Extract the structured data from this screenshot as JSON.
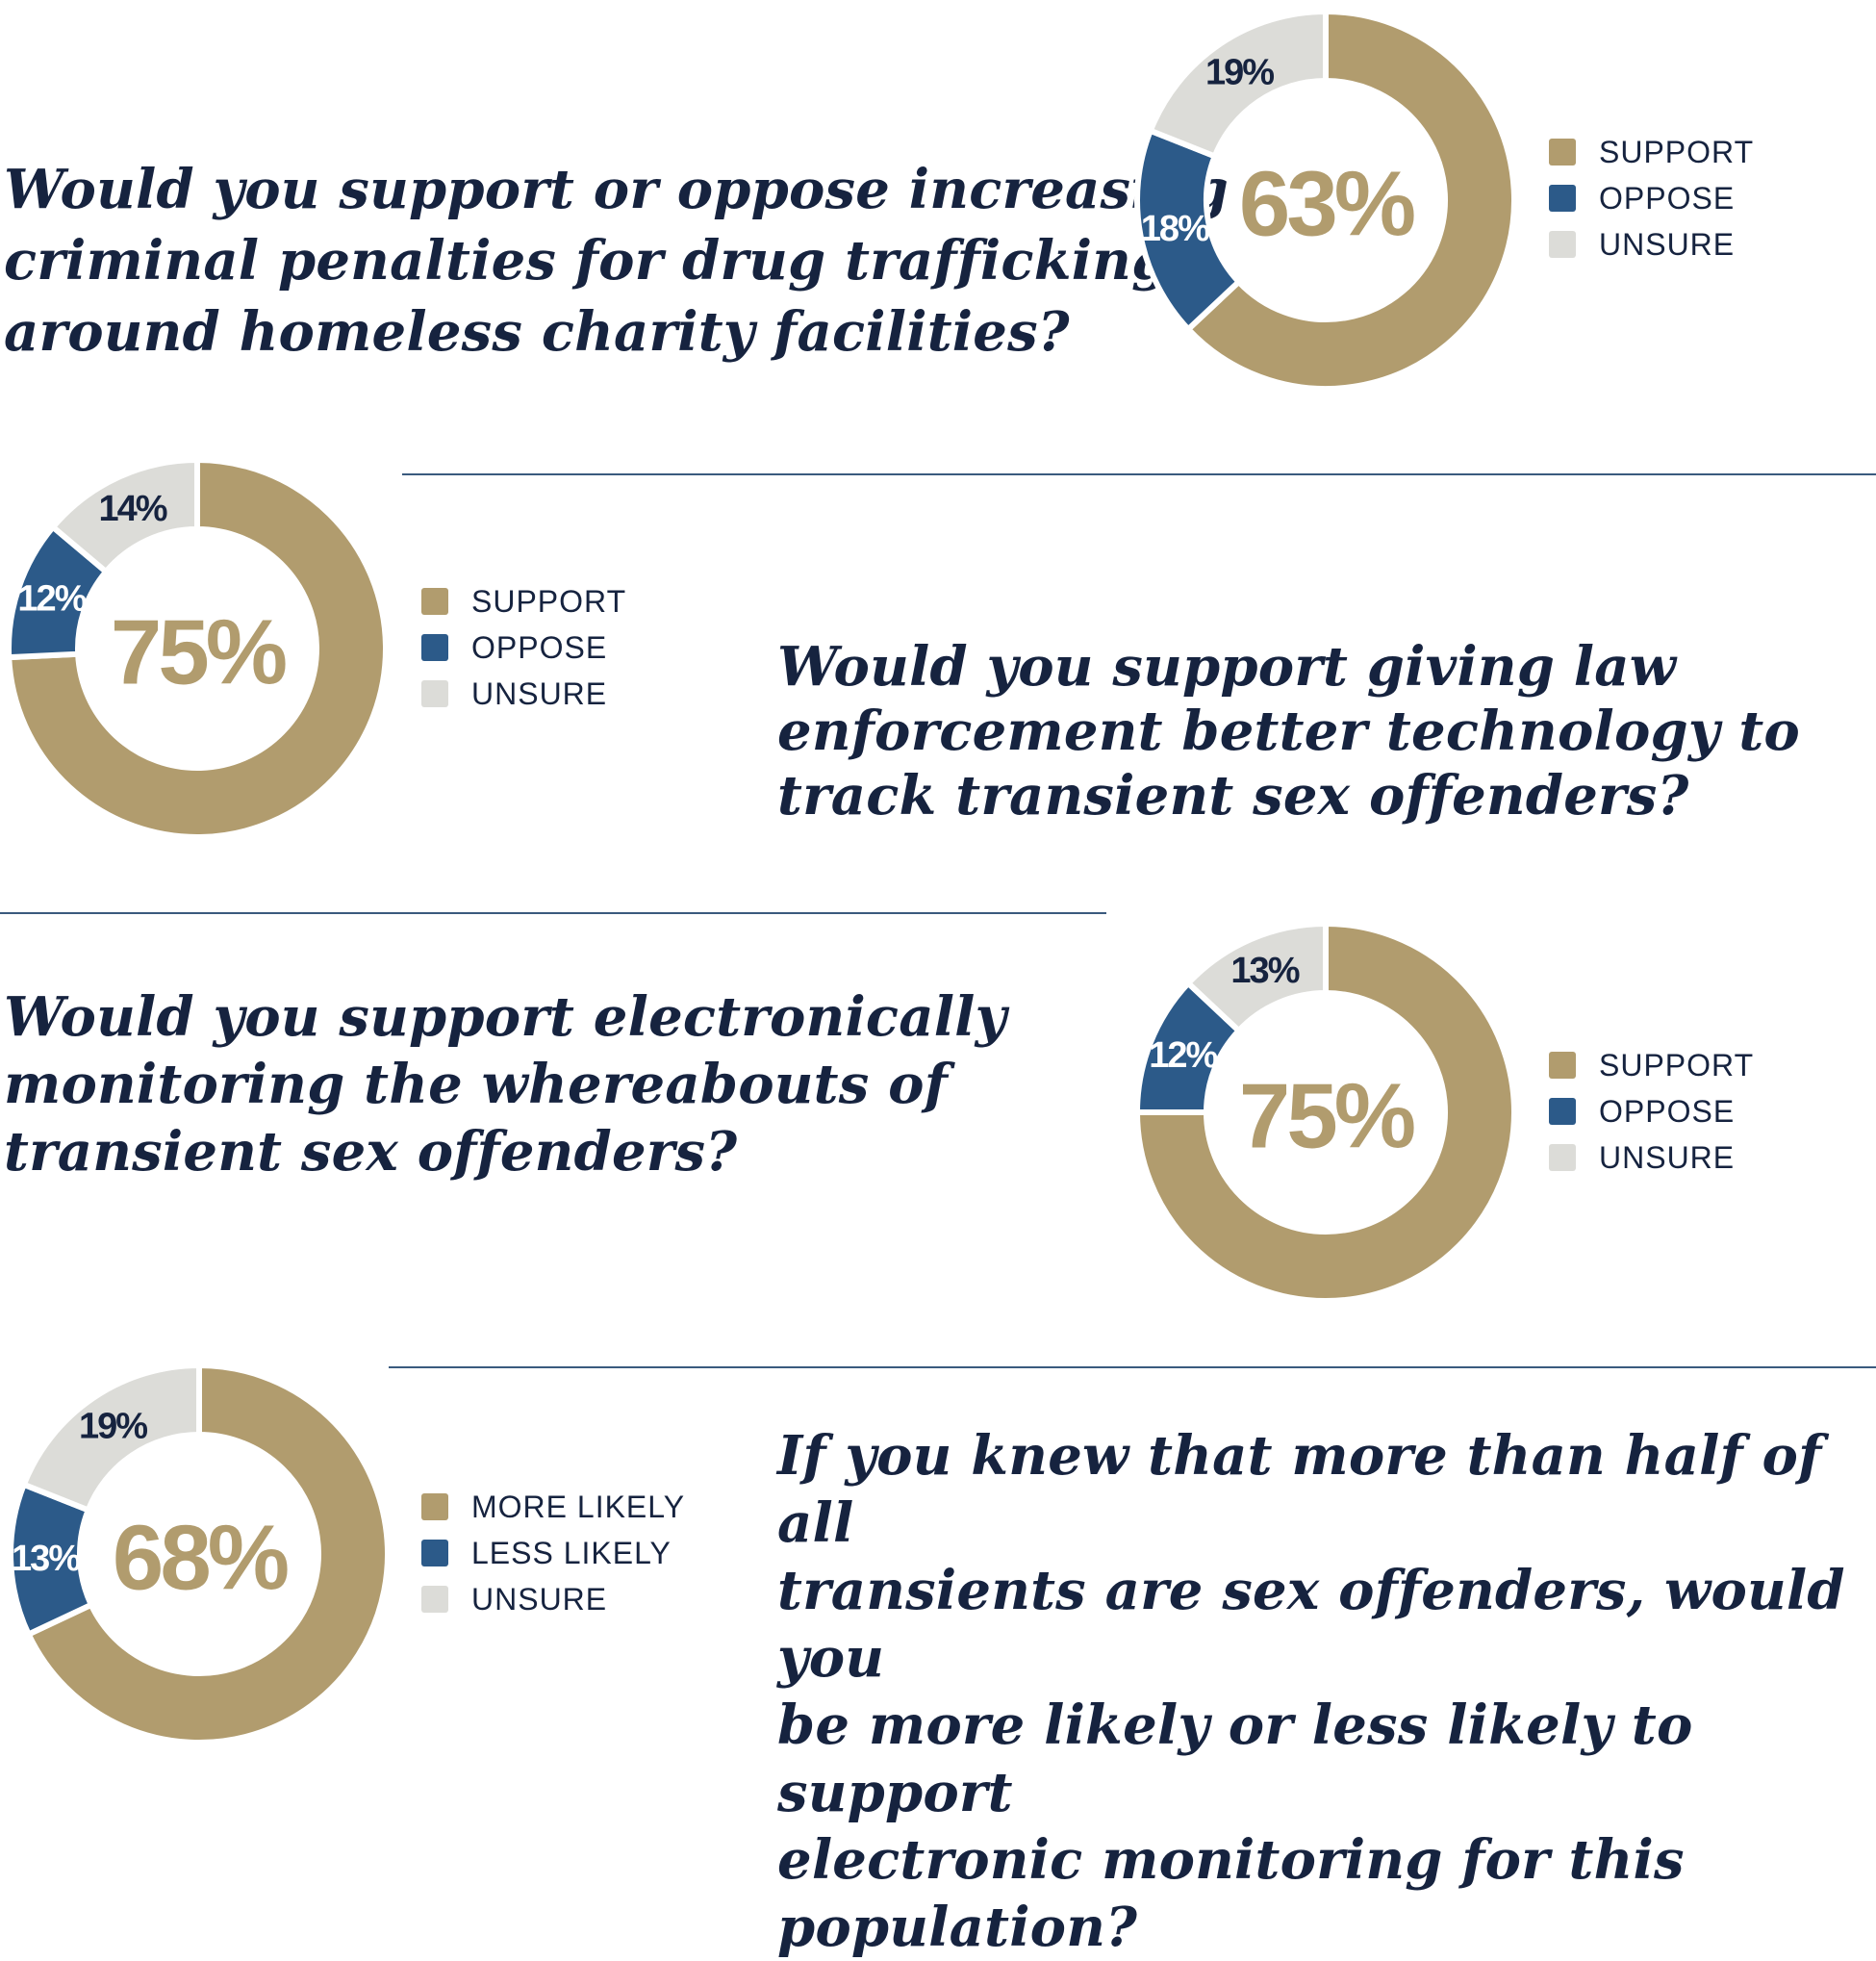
{
  "colors": {
    "support": "#b19c6e",
    "oppose": "#2c5a89",
    "unsure": "#dcdcd8",
    "text": "#16233f"
  },
  "chart_data": [
    {
      "type": "pie",
      "title": "Would you support or oppose increasing\ncriminal penalties for drug trafficking\naround homeless charity facilities?",
      "center_label": "63%",
      "slices": [
        {
          "label": "SUPPORT",
          "value": 63,
          "display": ""
        },
        {
          "label": "OPPOSE",
          "value": 18,
          "display": "18%"
        },
        {
          "label": "UNSURE",
          "value": 19,
          "display": "19%"
        }
      ]
    },
    {
      "type": "pie",
      "title": "Would you support giving law\nenforcement better technology to\ntrack transient sex offenders?",
      "center_label": "75%",
      "slices": [
        {
          "label": "SUPPORT",
          "value": 75,
          "display": ""
        },
        {
          "label": "OPPOSE",
          "value": 12,
          "display": "12%"
        },
        {
          "label": "UNSURE",
          "value": 14,
          "display": "14%"
        }
      ]
    },
    {
      "type": "pie",
      "title": "Would you support electronically\nmonitoring the whereabouts of\ntransient sex offenders?",
      "center_label": "75%",
      "slices": [
        {
          "label": "SUPPORT",
          "value": 75,
          "display": ""
        },
        {
          "label": "OPPOSE",
          "value": 12,
          "display": "12%"
        },
        {
          "label": "UNSURE",
          "value": 13,
          "display": "13%"
        }
      ]
    },
    {
      "type": "pie",
      "title": "If you knew that more than half of all\ntransients are sex offenders, would you\nbe more likely or less likely to support\nelectronic monitoring for this population?",
      "center_label": "68%",
      "slices": [
        {
          "label": "MORE LIKELY",
          "value": 68,
          "display": ""
        },
        {
          "label": "LESS LIKELY",
          "value": 13,
          "display": "13%"
        },
        {
          "label": "UNSURE",
          "value": 19,
          "display": "19%"
        }
      ]
    }
  ]
}
